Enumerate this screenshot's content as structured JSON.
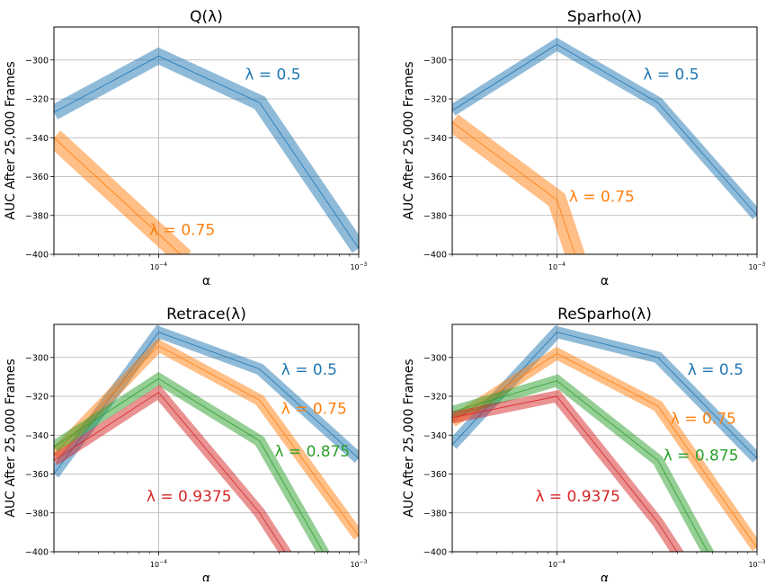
{
  "figure": {
    "ylabel": "AUC After 25,000 Frames",
    "xlabel": "α"
  },
  "colors": {
    "blue": "#1f77b4",
    "orange": "#ff7f0e",
    "green": "#2ca02c",
    "red": "#d62728",
    "grid": "#b0b0b0",
    "axis": "#000000"
  },
  "chart_data": [
    {
      "type": "line",
      "title": "Q(λ)",
      "xlabel": "α",
      "ylabel": "AUC After 25,000 Frames",
      "xscale": "log",
      "xlim": [
        3e-05,
        0.001
      ],
      "ylim": [
        -400,
        -283
      ],
      "xticks": [
        {
          "value": 0.0001,
          "base": "10",
          "exp": "−4"
        },
        {
          "value": 0.001,
          "base": "10",
          "exp": "−3"
        }
      ],
      "yticks": [
        -400,
        -380,
        -360,
        -340,
        -320,
        -300
      ],
      "ytick_labels": [
        "−400",
        "−380",
        "−360",
        "−340",
        "−320",
        "−300"
      ],
      "grid": true,
      "series": [
        {
          "color": "#1f77b4",
          "band": 4,
          "x": [
            3e-05,
            0.0001,
            0.00032,
            0.001
          ],
          "y": [
            -327,
            -298,
            -322,
            -397
          ]
        },
        {
          "color": "#ff7f0e",
          "band": 5,
          "x": [
            3e-05,
            0.000135
          ],
          "y": [
            -340,
            -402
          ]
        }
      ],
      "annotations": [
        {
          "text": "λ = 0.5",
          "color": "#1f77b4",
          "x": 0.00027,
          "y": -310
        },
        {
          "text": "λ = 0.75",
          "color": "#ff7f0e",
          "x": 9e-05,
          "y": -390
        }
      ]
    },
    {
      "type": "line",
      "title": "Sparho(λ)",
      "xlabel": "α",
      "ylabel": "AUC After 25,000 Frames",
      "xscale": "log",
      "xlim": [
        3e-05,
        0.001
      ],
      "ylim": [
        -400,
        -283
      ],
      "xticks": [
        {
          "value": 0.0001,
          "base": "10",
          "exp": "−4"
        },
        {
          "value": 0.001,
          "base": "10",
          "exp": "−3"
        }
      ],
      "yticks": [
        -400,
        -380,
        -360,
        -340,
        -320,
        -300
      ],
      "ytick_labels": [
        "−400",
        "−380",
        "−360",
        "−340",
        "−320",
        "−300"
      ],
      "grid": true,
      "series": [
        {
          "color": "#1f77b4",
          "band": 3,
          "x": [
            3e-05,
            0.0001,
            0.00032,
            0.001
          ],
          "y": [
            -326,
            -292,
            -322,
            -380
          ]
        },
        {
          "color": "#ff7f0e",
          "band": 5,
          "x": [
            3e-05,
            0.0001,
            0.000125
          ],
          "y": [
            -332,
            -372,
            -402
          ]
        }
      ],
      "annotations": [
        {
          "text": "λ = 0.5",
          "color": "#1f77b4",
          "x": 0.00027,
          "y": -310
        },
        {
          "text": "λ = 0.75",
          "color": "#ff7f0e",
          "x": 0.000115,
          "y": -373
        }
      ]
    },
    {
      "type": "line",
      "title": "Retrace(λ)",
      "xlabel": "α",
      "ylabel": "AUC After 25,000 Frames",
      "xscale": "log",
      "xlim": [
        3e-05,
        0.001
      ],
      "ylim": [
        -400,
        -283
      ],
      "xticks": [
        {
          "value": 0.0001,
          "base": "10",
          "exp": "−4"
        },
        {
          "value": 0.001,
          "base": "10",
          "exp": "−3"
        }
      ],
      "yticks": [
        -400,
        -380,
        -360,
        -340,
        -320,
        -300
      ],
      "ytick_labels": [
        "−400",
        "−380",
        "−360",
        "−340",
        "−320",
        "−300"
      ],
      "grid": true,
      "series": [
        {
          "color": "#1f77b4",
          "band": 3,
          "x": [
            3e-05,
            0.0001,
            0.00032,
            0.001
          ],
          "y": [
            -360,
            -287,
            -306,
            -352
          ]
        },
        {
          "color": "#ff7f0e",
          "band": 3,
          "x": [
            3e-05,
            0.0001,
            0.00032,
            0.001
          ],
          "y": [
            -350,
            -294,
            -322,
            -392
          ]
        },
        {
          "color": "#2ca02c",
          "band": 3,
          "x": [
            3e-05,
            0.0001,
            0.00032,
            0.00068
          ],
          "y": [
            -346,
            -311,
            -343,
            -402
          ]
        },
        {
          "color": "#d62728",
          "band": 3,
          "x": [
            3e-05,
            0.0001,
            0.00032,
            0.00044
          ],
          "y": [
            -353,
            -318,
            -380,
            -402
          ]
        }
      ],
      "annotations": [
        {
          "text": "λ = 0.5",
          "color": "#1f77b4",
          "x": 0.00041,
          "y": -309
        },
        {
          "text": "λ = 0.75",
          "color": "#ff7f0e",
          "x": 0.00041,
          "y": -329
        },
        {
          "text": "λ = 0.875",
          "color": "#2ca02c",
          "x": 0.00038,
          "y": -351
        },
        {
          "text": "λ = 0.9375",
          "color": "#d62728",
          "x": 8.7e-05,
          "y": -374
        }
      ]
    },
    {
      "type": "line",
      "title": "ReSparho(λ)",
      "xlabel": "α",
      "ylabel": "AUC After 25,000 Frames",
      "xscale": "log",
      "xlim": [
        3e-05,
        0.001
      ],
      "ylim": [
        -400,
        -283
      ],
      "xticks": [
        {
          "value": 0.0001,
          "base": "10",
          "exp": "−4"
        },
        {
          "value": 0.001,
          "base": "10",
          "exp": "−3"
        }
      ],
      "yticks": [
        -400,
        -380,
        -360,
        -340,
        -320,
        -300
      ],
      "ytick_labels": [
        "−400",
        "−380",
        "−360",
        "−340",
        "−320",
        "−300"
      ],
      "grid": true,
      "series": [
        {
          "color": "#1f77b4",
          "band": 3,
          "x": [
            3e-05,
            0.0001,
            0.00032,
            0.001
          ],
          "y": [
            -345,
            -287,
            -300,
            -352
          ]
        },
        {
          "color": "#ff7f0e",
          "band": 3,
          "x": [
            3e-05,
            0.0001,
            0.00032,
            0.001
          ],
          "y": [
            -333,
            -298,
            -325,
            -398
          ]
        },
        {
          "color": "#2ca02c",
          "band": 3,
          "x": [
            3e-05,
            0.0001,
            0.00032,
            0.00058
          ],
          "y": [
            -328,
            -312,
            -353,
            -402
          ]
        },
        {
          "color": "#d62728",
          "band": 3,
          "x": [
            3e-05,
            0.0001,
            0.00032,
            0.00041
          ],
          "y": [
            -331,
            -320,
            -385,
            -402
          ]
        }
      ],
      "annotations": [
        {
          "text": "λ = 0.5",
          "color": "#1f77b4",
          "x": 0.00045,
          "y": -309
        },
        {
          "text": "λ = 0.75",
          "color": "#ff7f0e",
          "x": 0.00037,
          "y": -334
        },
        {
          "text": "λ = 0.875",
          "color": "#2ca02c",
          "x": 0.00034,
          "y": -353
        },
        {
          "text": "λ = 0.9375",
          "color": "#d62728",
          "x": 7.8e-05,
          "y": -374
        }
      ]
    }
  ]
}
